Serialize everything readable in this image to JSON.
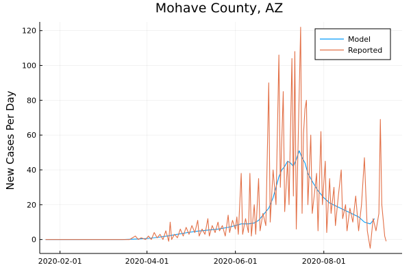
{
  "chart_data": {
    "type": "line",
    "title": "Mohave County, AZ",
    "xlabel": "",
    "ylabel": "New Cases Per Day",
    "x_axis": {
      "type": "date",
      "range": [
        "2020-01-18",
        "2020-09-24"
      ],
      "ticks": [
        "2020-02-01",
        "2020-04-01",
        "2020-06-01",
        "2020-08-01"
      ]
    },
    "y_axis": {
      "range": [
        -8,
        125
      ],
      "ticks": [
        0,
        20,
        40,
        60,
        80,
        100,
        120
      ]
    },
    "grid": true,
    "legend_position": "top-right",
    "series": [
      {
        "name": "Model",
        "color": "#009af9",
        "points": [
          [
            "2020-01-22",
            0
          ],
          [
            "2020-02-15",
            0
          ],
          [
            "2020-03-15",
            0
          ],
          [
            "2020-03-25",
            0.3
          ],
          [
            "2020-04-01",
            0.6
          ],
          [
            "2020-04-08",
            1.2
          ],
          [
            "2020-04-15",
            2
          ],
          [
            "2020-04-22",
            3
          ],
          [
            "2020-04-29",
            4
          ],
          [
            "2020-05-06",
            4.8
          ],
          [
            "2020-05-13",
            5.4
          ],
          [
            "2020-05-20",
            6
          ],
          [
            "2020-05-27",
            7
          ],
          [
            "2020-06-01",
            8
          ],
          [
            "2020-06-05",
            9
          ],
          [
            "2020-06-10",
            9
          ],
          [
            "2020-06-14",
            9.5
          ],
          [
            "2020-06-17",
            11
          ],
          [
            "2020-06-20",
            14
          ],
          [
            "2020-06-24",
            18
          ],
          [
            "2020-06-27",
            24
          ],
          [
            "2020-06-29",
            30
          ],
          [
            "2020-07-01",
            36
          ],
          [
            "2020-07-03",
            40
          ],
          [
            "2020-07-05",
            42
          ],
          [
            "2020-07-07",
            45
          ],
          [
            "2020-07-09",
            44
          ],
          [
            "2020-07-11",
            42
          ],
          [
            "2020-07-13",
            46
          ],
          [
            "2020-07-15",
            51
          ],
          [
            "2020-07-17",
            47
          ],
          [
            "2020-07-19",
            44
          ],
          [
            "2020-07-21",
            38
          ],
          [
            "2020-07-23",
            35
          ],
          [
            "2020-07-25",
            32
          ],
          [
            "2020-07-28",
            28
          ],
          [
            "2020-08-01",
            24
          ],
          [
            "2020-08-05",
            21
          ],
          [
            "2020-08-10",
            19
          ],
          [
            "2020-08-15",
            17
          ],
          [
            "2020-08-20",
            15
          ],
          [
            "2020-08-25",
            13
          ],
          [
            "2020-08-29",
            10
          ],
          [
            "2020-09-02",
            9
          ],
          [
            "2020-09-05",
            12
          ]
        ]
      },
      {
        "name": "Reported",
        "color": "#e26f46",
        "points": [
          [
            "2020-01-22",
            0
          ],
          [
            "2020-02-15",
            0
          ],
          [
            "2020-03-10",
            0
          ],
          [
            "2020-03-20",
            0
          ],
          [
            "2020-03-22",
            1
          ],
          [
            "2020-03-24",
            2
          ],
          [
            "2020-03-26",
            0
          ],
          [
            "2020-03-28",
            1
          ],
          [
            "2020-03-31",
            0
          ],
          [
            "2020-04-02",
            2
          ],
          [
            "2020-04-04",
            0
          ],
          [
            "2020-04-06",
            4
          ],
          [
            "2020-04-08",
            1
          ],
          [
            "2020-04-10",
            3
          ],
          [
            "2020-04-12",
            0
          ],
          [
            "2020-04-14",
            5
          ],
          [
            "2020-04-16",
            -1
          ],
          [
            "2020-04-17",
            10
          ],
          [
            "2020-04-18",
            0
          ],
          [
            "2020-04-20",
            3
          ],
          [
            "2020-04-22",
            1
          ],
          [
            "2020-04-24",
            6
          ],
          [
            "2020-04-26",
            2
          ],
          [
            "2020-04-28",
            7
          ],
          [
            "2020-04-30",
            3
          ],
          [
            "2020-05-02",
            8
          ],
          [
            "2020-05-04",
            4
          ],
          [
            "2020-05-06",
            11
          ],
          [
            "2020-05-07",
            2
          ],
          [
            "2020-05-09",
            6
          ],
          [
            "2020-05-11",
            3
          ],
          [
            "2020-05-13",
            12
          ],
          [
            "2020-05-14",
            2
          ],
          [
            "2020-05-16",
            8
          ],
          [
            "2020-05-18",
            4
          ],
          [
            "2020-05-20",
            10
          ],
          [
            "2020-05-21",
            5
          ],
          [
            "2020-05-23",
            8
          ],
          [
            "2020-05-25",
            2
          ],
          [
            "2020-05-27",
            14
          ],
          [
            "2020-05-28",
            4
          ],
          [
            "2020-05-30",
            11
          ],
          [
            "2020-06-01",
            6
          ],
          [
            "2020-06-02",
            13
          ],
          [
            "2020-06-03",
            3
          ],
          [
            "2020-06-05",
            38
          ],
          [
            "2020-06-06",
            3
          ],
          [
            "2020-06-08",
            12
          ],
          [
            "2020-06-10",
            4
          ],
          [
            "2020-06-11",
            38
          ],
          [
            "2020-06-12",
            2
          ],
          [
            "2020-06-14",
            20
          ],
          [
            "2020-06-15",
            3
          ],
          [
            "2020-06-17",
            35
          ],
          [
            "2020-06-18",
            5
          ],
          [
            "2020-06-20",
            15
          ],
          [
            "2020-06-22",
            8
          ],
          [
            "2020-06-24",
            90
          ],
          [
            "2020-06-25",
            10
          ],
          [
            "2020-06-27",
            40
          ],
          [
            "2020-06-29",
            20
          ],
          [
            "2020-07-01",
            106
          ],
          [
            "2020-07-02",
            30
          ],
          [
            "2020-07-04",
            85
          ],
          [
            "2020-07-05",
            16
          ],
          [
            "2020-07-07",
            45
          ],
          [
            "2020-07-08",
            20
          ],
          [
            "2020-07-10",
            104
          ],
          [
            "2020-07-11",
            25
          ],
          [
            "2020-07-12",
            108
          ],
          [
            "2020-07-13",
            6
          ],
          [
            "2020-07-14",
            45
          ],
          [
            "2020-07-16",
            122
          ],
          [
            "2020-07-17",
            15
          ],
          [
            "2020-07-18",
            61
          ],
          [
            "2020-07-19",
            75
          ],
          [
            "2020-07-20",
            80
          ],
          [
            "2020-07-21",
            20
          ],
          [
            "2020-07-23",
            60
          ],
          [
            "2020-07-24",
            15
          ],
          [
            "2020-07-26",
            30
          ],
          [
            "2020-07-27",
            38
          ],
          [
            "2020-07-28",
            5
          ],
          [
            "2020-07-30",
            62
          ],
          [
            "2020-07-31",
            20
          ],
          [
            "2020-08-02",
            45
          ],
          [
            "2020-08-03",
            4
          ],
          [
            "2020-08-05",
            35
          ],
          [
            "2020-08-06",
            15
          ],
          [
            "2020-08-08",
            30
          ],
          [
            "2020-08-09",
            8
          ],
          [
            "2020-08-11",
            25
          ],
          [
            "2020-08-13",
            40
          ],
          [
            "2020-08-14",
            12
          ],
          [
            "2020-08-16",
            20
          ],
          [
            "2020-08-17",
            5
          ],
          [
            "2020-08-19",
            18
          ],
          [
            "2020-08-21",
            10
          ],
          [
            "2020-08-23",
            25
          ],
          [
            "2020-08-25",
            5
          ],
          [
            "2020-08-27",
            20
          ],
          [
            "2020-08-29",
            47
          ],
          [
            "2020-08-31",
            5
          ],
          [
            "2020-09-02",
            -5
          ],
          [
            "2020-09-04",
            12
          ],
          [
            "2020-09-06",
            5
          ],
          [
            "2020-09-08",
            15
          ],
          [
            "2020-09-09",
            69
          ],
          [
            "2020-09-10",
            20
          ],
          [
            "2020-09-12",
            2
          ],
          [
            "2020-09-13",
            -1
          ]
        ]
      }
    ]
  }
}
